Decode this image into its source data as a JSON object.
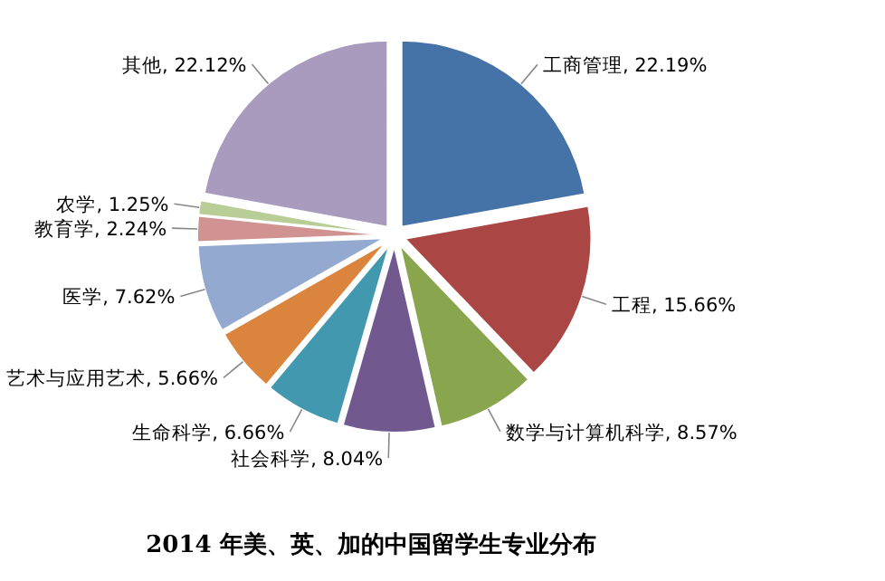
{
  "chart_data": {
    "type": "pie",
    "title": "2014 年美、英、加的中国留学生专业分布",
    "categories": [
      "工商管理",
      "工程",
      "数学与计算机科学",
      "社会科学",
      "生命科学",
      "艺术与应用艺术",
      "医学",
      "教育学",
      "农学",
      "其他"
    ],
    "values": [
      22.19,
      15.66,
      8.57,
      8.04,
      6.66,
      5.66,
      7.62,
      2.24,
      1.25,
      22.12
    ],
    "value_labels": [
      "22.19%",
      "15.66%",
      "8.57%",
      "8.04%",
      "6.66%",
      "5.66%",
      "7.62%",
      "2.24%",
      "1.25%",
      "22.12%"
    ],
    "colors": [
      "#4572a7",
      "#aa4643",
      "#89a54e",
      "#71588f",
      "#4198af",
      "#db843d",
      "#93a9cf",
      "#d19392",
      "#b9cd96",
      "#a99bbd"
    ]
  }
}
